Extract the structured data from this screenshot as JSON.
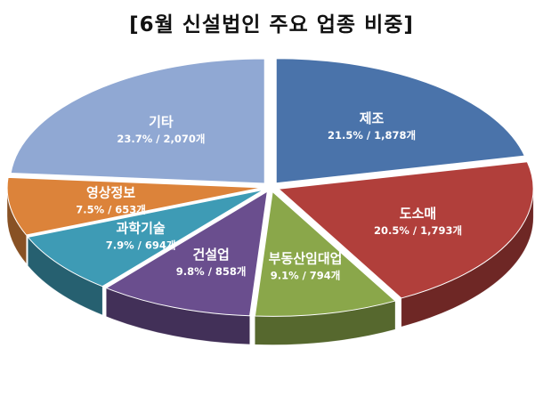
{
  "chart_data": {
    "type": "pie",
    "title": "[6월 신설법인 주요 업종 비중]",
    "slices": [
      {
        "label": "제조",
        "percent": 21.5,
        "count": 1878,
        "value_text": "21.5% / 1,878개",
        "color": "#4a73aa"
      },
      {
        "label": "도소매",
        "percent": 20.5,
        "count": 1793,
        "value_text": "20.5% / 1,793개",
        "color": "#b13f3b"
      },
      {
        "label": "부동산임대업",
        "percent": 9.1,
        "count": 794,
        "value_text": "9.1% / 794개",
        "color": "#8aa74a"
      },
      {
        "label": "건설업",
        "percent": 9.8,
        "count": 858,
        "value_text": "9.8% / 858개",
        "color": "#6a4e8e"
      },
      {
        "label": "과학기술",
        "percent": 7.9,
        "count": 694,
        "value_text": "7.9% / 694개",
        "color": "#3e9bb5"
      },
      {
        "label": "영상정보",
        "percent": 7.5,
        "count": 653,
        "value_text": "7.5% / 653개",
        "color": "#dc833a"
      },
      {
        "label": "기타",
        "percent": 23.7,
        "count": 2070,
        "value_text": "23.7% / 2,070개",
        "color": "#90a8d3"
      }
    ],
    "start_angle_deg": 0,
    "direction": "clockwise",
    "style": "3d-exploded"
  }
}
